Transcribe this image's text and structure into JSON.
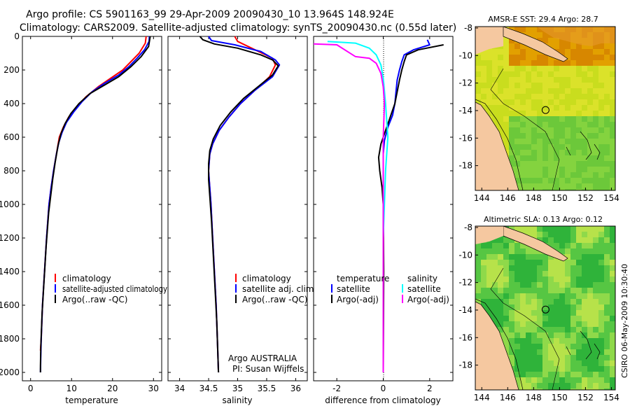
{
  "header": {
    "line1": "Argo profile: CS 5901163_99 29-Apr-2009 20090430_10 13.964S 148.924E",
    "line2": "Climatology: CARS2009. Satellite-adjusted climatology: synTS_20090430.nc (0.55d later)"
  },
  "colors": {
    "red": "#ff0000",
    "blue": "#0000ff",
    "black": "#000000",
    "cyan": "#00ffff",
    "magenta": "#ff00ff",
    "land": "#f5c8a0"
  },
  "chart_data": [
    {
      "type": "line",
      "id": "temperature",
      "xlabel": "temperature",
      "ylabel": "",
      "xlim": [
        -2,
        32
      ],
      "ylim": [
        2050,
        0
      ],
      "xticks": [
        0,
        10,
        20,
        30
      ],
      "yticks": [
        0,
        200,
        400,
        600,
        800,
        1000,
        1200,
        1400,
        1600,
        1800,
        2000
      ],
      "legend": [
        "climatology",
        "satellite-adjusted climatology",
        "Argo(..raw -QC)"
      ],
      "series": [
        {
          "name": "climatology",
          "color": "red",
          "points": [
            [
              28.2,
              0
            ],
            [
              28.0,
              40
            ],
            [
              26.5,
              100
            ],
            [
              24.5,
              150
            ],
            [
              22.5,
              200
            ],
            [
              19.5,
              250
            ],
            [
              16.5,
              300
            ],
            [
              13.5,
              360
            ],
            [
              11.2,
              420
            ],
            [
              9.3,
              480
            ],
            [
              8.0,
              540
            ],
            [
              7.0,
              600
            ],
            [
              6.3,
              700
            ],
            [
              5.6,
              800
            ],
            [
              5.0,
              900
            ],
            [
              4.5,
              1000
            ],
            [
              3.9,
              1200
            ],
            [
              3.4,
              1400
            ],
            [
              2.9,
              1600
            ],
            [
              2.6,
              1800
            ],
            [
              2.4,
              1870
            ]
          ]
        },
        {
          "name": "satellite-adjusted climatology",
          "color": "blue",
          "points": [
            [
              29.0,
              0
            ],
            [
              28.9,
              30
            ],
            [
              27.8,
              80
            ],
            [
              26.0,
              130
            ],
            [
              24.0,
              180
            ],
            [
              21.5,
              230
            ],
            [
              18.0,
              280
            ],
            [
              15.0,
              330
            ],
            [
              12.5,
              390
            ],
            [
              10.5,
              450
            ],
            [
              8.8,
              510
            ],
            [
              7.7,
              570
            ],
            [
              6.9,
              630
            ],
            [
              6.3,
              700
            ],
            [
              5.6,
              800
            ],
            [
              5.0,
              900
            ],
            [
              4.5,
              1000
            ],
            [
              3.9,
              1200
            ],
            [
              3.4,
              1400
            ],
            [
              2.9,
              1600
            ],
            [
              2.6,
              1800
            ],
            [
              2.5,
              1900
            ],
            [
              2.4,
              2000
            ]
          ]
        },
        {
          "name": "Argo(..raw -QC)",
          "color": "black",
          "points": [
            [
              29.2,
              0
            ],
            [
              28.8,
              60
            ],
            [
              27.0,
              120
            ],
            [
              24.5,
              180
            ],
            [
              21.5,
              240
            ],
            [
              18.0,
              290
            ],
            [
              14.5,
              340
            ],
            [
              11.8,
              400
            ],
            [
              9.8,
              460
            ],
            [
              8.4,
              520
            ],
            [
              7.4,
              580
            ],
            [
              6.7,
              650
            ],
            [
              6.0,
              750
            ],
            [
              5.4,
              850
            ],
            [
              4.9,
              950
            ],
            [
              4.4,
              1050
            ],
            [
              3.8,
              1250
            ],
            [
              3.3,
              1450
            ],
            [
              2.8,
              1650
            ],
            [
              2.5,
              1850
            ],
            [
              2.4,
              1960
            ],
            [
              2.4,
              2000
            ]
          ]
        }
      ]
    },
    {
      "type": "line",
      "id": "salinity",
      "xlabel": "salinity",
      "ylabel": "",
      "xlim": [
        33.8,
        36.2
      ],
      "ylim": [
        2050,
        0
      ],
      "xticks": [
        34,
        34.5,
        35,
        35.5,
        36
      ],
      "yticks": [],
      "legend": [
        "climatology",
        "satellite adj. clim.",
        "Argo(..raw -QC)"
      ],
      "series": [
        {
          "name": "climatology",
          "color": "red",
          "points": [
            [
              34.95,
              0
            ],
            [
              35.0,
              30
            ],
            [
              35.3,
              80
            ],
            [
              35.6,
              130
            ],
            [
              35.65,
              170
            ],
            [
              35.55,
              240
            ],
            [
              35.3,
              320
            ],
            [
              35.05,
              400
            ],
            [
              34.85,
              480
            ],
            [
              34.68,
              560
            ],
            [
              34.57,
              640
            ],
            [
              34.52,
              700
            ],
            [
              34.5,
              800
            ],
            [
              34.52,
              900
            ],
            [
              34.54,
              1000
            ],
            [
              34.57,
              1200
            ],
            [
              34.6,
              1400
            ],
            [
              34.63,
              1600
            ],
            [
              34.65,
              1800
            ],
            [
              34.67,
              2000
            ]
          ]
        },
        {
          "name": "satellite adj. clim.",
          "color": "blue",
          "points": [
            [
              34.5,
              0
            ],
            [
              34.55,
              25
            ],
            [
              34.95,
              50
            ],
            [
              35.4,
              90
            ],
            [
              35.65,
              140
            ],
            [
              35.72,
              170
            ],
            [
              35.6,
              240
            ],
            [
              35.3,
              320
            ],
            [
              35.05,
              400
            ],
            [
              34.85,
              480
            ],
            [
              34.68,
              560
            ],
            [
              34.57,
              640
            ],
            [
              34.52,
              700
            ],
            [
              34.5,
              800
            ],
            [
              34.52,
              900
            ],
            [
              34.54,
              1000
            ],
            [
              34.57,
              1200
            ],
            [
              34.6,
              1400
            ],
            [
              34.63,
              1600
            ],
            [
              34.65,
              1800
            ],
            [
              34.67,
              2000
            ]
          ]
        },
        {
          "name": "Argo(..raw -QC)",
          "color": "black",
          "points": [
            [
              34.35,
              0
            ],
            [
              34.4,
              20
            ],
            [
              34.6,
              45
            ],
            [
              35.0,
              70
            ],
            [
              35.4,
              110
            ],
            [
              35.6,
              140
            ],
            [
              35.7,
              175
            ],
            [
              35.6,
              230
            ],
            [
              35.35,
              300
            ],
            [
              35.1,
              370
            ],
            [
              34.88,
              450
            ],
            [
              34.7,
              530
            ],
            [
              34.58,
              610
            ],
            [
              34.52,
              680
            ],
            [
              34.5,
              760
            ],
            [
              34.5,
              850
            ],
            [
              34.52,
              950
            ],
            [
              34.55,
              1100
            ],
            [
              34.58,
              1300
            ],
            [
              34.61,
              1500
            ],
            [
              34.64,
              1700
            ],
            [
              34.66,
              1900
            ],
            [
              34.67,
              2000
            ]
          ]
        }
      ]
    },
    {
      "type": "line",
      "id": "difference",
      "xlabel": "difference from climatology",
      "ylabel": "",
      "xlim": [
        -3,
        3
      ],
      "ylim": [
        2050,
        0
      ],
      "xticks": [
        -2,
        0,
        2
      ],
      "yticks": [],
      "legend_left": {
        "title": "temperature",
        "items": [
          "satellite",
          "Argo(-adj)"
        ]
      },
      "legend_right": {
        "title": "salinity",
        "items": [
          "satellite",
          "Argo(-adj)"
        ]
      },
      "series": [
        {
          "name": "temperature satellite",
          "color": "blue",
          "points": [
            [
              1.9,
              20
            ],
            [
              2.0,
              50
            ],
            [
              1.3,
              80
            ],
            [
              0.9,
              110
            ],
            [
              0.8,
              150
            ],
            [
              0.7,
              200
            ],
            [
              0.6,
              260
            ],
            [
              0.55,
              330
            ],
            [
              0.5,
              400
            ],
            [
              0.4,
              470
            ],
            [
              0.2,
              540
            ],
            [
              0.05,
              620
            ],
            [
              0.0,
              700
            ],
            [
              0.0,
              800
            ],
            [
              0.0,
              1000
            ],
            [
              0.0,
              2000
            ]
          ]
        },
        {
          "name": "temperature Argo(-adj)",
          "color": "black",
          "points": [
            [
              2.6,
              50
            ],
            [
              1.5,
              80
            ],
            [
              1.0,
              110
            ],
            [
              0.9,
              150
            ],
            [
              0.8,
              200
            ],
            [
              0.7,
              260
            ],
            [
              0.6,
              330
            ],
            [
              0.5,
              400
            ],
            [
              0.3,
              480
            ],
            [
              0.1,
              560
            ],
            [
              -0.1,
              640
            ],
            [
              -0.2,
              720
            ],
            [
              -0.15,
              800
            ],
            [
              -0.05,
              900
            ],
            [
              0.0,
              1000
            ],
            [
              0.02,
              1400
            ],
            [
              0.0,
              2000
            ]
          ]
        },
        {
          "name": "salinity satellite",
          "color": "cyan",
          "points": [
            [
              -2.4,
              30
            ],
            [
              -1.2,
              40
            ],
            [
              -0.6,
              70
            ],
            [
              -0.3,
              110
            ],
            [
              -0.1,
              170
            ],
            [
              0.0,
              250
            ],
            [
              0.1,
              400
            ],
            [
              0.2,
              600
            ],
            [
              0.1,
              800
            ],
            [
              0.0,
              1200
            ],
            [
              0.0,
              2000
            ]
          ]
        },
        {
          "name": "salinity Argo(-adj)",
          "color": "magenta",
          "points": [
            [
              -3.0,
              45
            ],
            [
              -2.0,
              50
            ],
            [
              -1.2,
              120
            ],
            [
              -0.6,
              130
            ],
            [
              -0.3,
              160
            ],
            [
              -0.1,
              220
            ],
            [
              0.0,
              300
            ],
            [
              0.05,
              400
            ],
            [
              0.0,
              600
            ],
            [
              0.0,
              2000
            ]
          ]
        }
      ]
    },
    {
      "type": "heatmap",
      "id": "sst_map",
      "title": "AMSR-E SST: 29.4 Argo: 28.7",
      "xlim": [
        143.5,
        154.3
      ],
      "ylim": [
        -19.8,
        -7.9
      ],
      "xticks": [
        144,
        146,
        148,
        150,
        152,
        154
      ],
      "yticks": [
        -8,
        -10,
        -12,
        -14,
        -16,
        -18
      ],
      "argo_position": [
        148.92,
        -13.96
      ]
    },
    {
      "type": "heatmap",
      "id": "sla_map",
      "title": "Altimetric SLA: 0.13 Argo: 0.12",
      "xlim": [
        143.5,
        154.3
      ],
      "ylim": [
        -19.8,
        -7.9
      ],
      "xticks": [
        144,
        146,
        148,
        150,
        152,
        154
      ],
      "yticks": [
        -8,
        -10,
        -12,
        -14,
        -16,
        -18
      ],
      "argo_position": [
        148.92,
        -13.96
      ]
    }
  ],
  "annotations": {
    "institution": "Argo AUSTRALIA",
    "pi": "PI: Susan Wijffels",
    "credit": "CSIRO 06-May-2009 10:30:40"
  }
}
